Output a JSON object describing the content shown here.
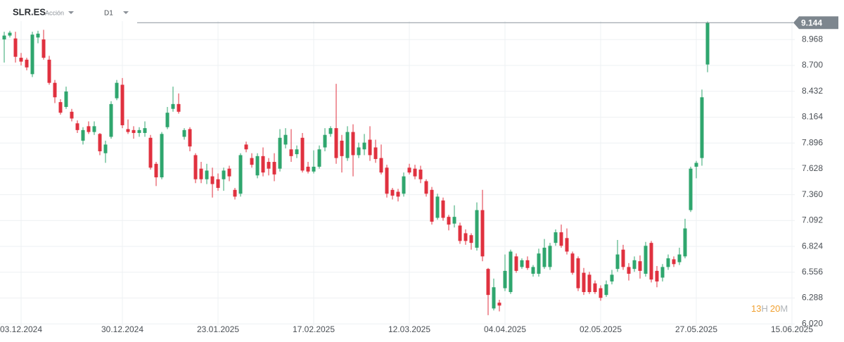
{
  "chart_data": {
    "type": "candlestick",
    "symbol": "SLR.ES",
    "asset_type": "Acción",
    "timeframe": "D1",
    "last_price": 9.144,
    "countdown": {
      "hours": "13",
      "hours_unit": "H",
      "minutes": "20",
      "minutes_unit": "M"
    },
    "up_color": "#2fa66e",
    "down_color": "#e0313f",
    "grid": true,
    "ylim": [
      6.0,
      9.16
    ],
    "yticks": [
      {
        "value": 6.02,
        "label": "6.020"
      },
      6.288,
      6.556,
      6.824,
      7.092,
      {
        "value": 7.36,
        "label": "7.360"
      },
      7.628,
      7.896,
      8.164,
      8.432,
      {
        "value": 8.7,
        "label": "8.700"
      },
      8.968
    ],
    "xlim": [
      -0.75,
      140.5
    ],
    "xticks": [
      {
        "value": 3,
        "label": "03.12.2024"
      },
      {
        "value": 21,
        "label": "30.12.2024"
      },
      {
        "value": 38,
        "label": "23.01.2025"
      },
      {
        "value": 55,
        "label": "17.02.2025"
      },
      {
        "value": 72,
        "label": "12.03.2025"
      },
      {
        "value": 89,
        "label": "04.04.2025"
      },
      {
        "value": 106,
        "label": "02.05.2025"
      },
      {
        "value": 123,
        "label": "27.05.2025"
      },
      {
        "value": 140,
        "label": "15.06.2025"
      }
    ],
    "open": [
      8.97,
      9.01,
      8.98,
      8.78,
      8.76,
      8.61,
      8.99,
      8.97,
      8.76,
      8.52,
      8.32,
      8.27,
      8.22,
      8.1,
      7.92,
      8.07,
      8.01,
      7.99,
      7.79,
      7.96,
      8.36,
      8.5,
      8.04,
      8.03,
      8.0,
      8.0,
      7.95,
      7.68,
      7.54,
      8.06,
      8.25,
      8.3,
      7.96,
      8.04,
      7.77,
      7.63,
      7.52,
      7.55,
      7.52,
      7.52,
      7.63,
      7.41,
      7.37,
      7.88,
      7.74,
      7.56,
      7.76,
      7.7,
      7.7,
      7.63,
      7.88,
      7.83,
      7.78,
      7.95,
      7.65,
      7.6,
      7.65,
      7.85,
      7.99,
      8.05,
      7.92,
      7.74,
      8.01,
      7.77,
      7.83,
      7.93,
      7.85,
      7.74,
      7.64,
      7.41,
      7.39,
      7.37,
      7.64,
      7.63,
      7.62,
      7.5,
      7.41,
      7.12,
      7.3,
      7.13,
      7.06,
      7.04,
      6.96,
      6.94,
      6.81,
      7.2,
      6.59,
      6.18,
      6.24,
      6.39,
      6.35,
      6.72,
      6.61,
      6.68,
      6.54,
      6.54,
      6.61,
      6.61,
      6.86,
      6.97,
      6.91,
      6.75,
      6.7,
      6.55,
      6.53,
      6.44,
      6.39,
      6.32,
      6.46,
      6.59,
      6.79,
      6.61,
      6.59,
      6.67,
      6.54,
      6.86,
      6.57,
      6.5,
      6.61,
      6.69,
      6.66,
      6.72,
      7.2,
      7.65,
      7.74,
      8.71
    ],
    "high": [
      9.05,
      9.06,
      9.05,
      8.83,
      8.78,
      9.05,
      9.06,
      9.07,
      8.8,
      8.55,
      8.35,
      8.48,
      8.25,
      8.13,
      8.06,
      8.12,
      8.12,
      8.0,
      7.92,
      8.33,
      8.55,
      8.57,
      8.14,
      8.07,
      8.06,
      8.12,
      7.98,
      7.7,
      8.01,
      8.27,
      8.48,
      8.41,
      8.05,
      8.06,
      7.79,
      7.7,
      7.68,
      7.64,
      7.58,
      7.64,
      7.66,
      7.43,
      7.79,
      7.91,
      7.79,
      7.79,
      7.85,
      7.74,
      7.79,
      8.04,
      8.05,
      8.04,
      7.87,
      8.0,
      7.7,
      7.82,
      7.87,
      8.05,
      8.07,
      8.51,
      7.98,
      8.07,
      8.09,
      7.9,
      7.99,
      8.07,
      7.93,
      7.88,
      7.67,
      7.43,
      7.42,
      7.59,
      7.68,
      7.67,
      7.66,
      7.52,
      7.44,
      7.37,
      7.33,
      7.15,
      7.25,
      7.07,
      7.0,
      6.96,
      7.28,
      7.41,
      6.6,
      6.49,
      6.27,
      6.74,
      6.79,
      6.75,
      6.7,
      6.72,
      6.63,
      6.8,
      6.9,
      6.86,
      7.0,
      7.05,
      7.01,
      6.77,
      6.72,
      6.6,
      6.56,
      6.47,
      6.42,
      6.47,
      6.58,
      6.89,
      6.84,
      6.65,
      6.72,
      6.73,
      6.87,
      6.88,
      6.62,
      6.64,
      6.74,
      6.72,
      6.81,
      7.11,
      7.65,
      7.71,
      8.45,
      9.155
    ],
    "low": [
      8.73,
      8.99,
      8.73,
      8.7,
      8.65,
      8.58,
      8.93,
      8.76,
      8.5,
      8.31,
      8.19,
      8.25,
      8.12,
      8.0,
      7.88,
      7.99,
      7.98,
      7.77,
      7.69,
      7.94,
      8.34,
      8.05,
      7.99,
      7.94,
      7.96,
      7.96,
      7.62,
      7.45,
      7.52,
      8.04,
      8.22,
      8.2,
      7.93,
      7.81,
      7.48,
      7.48,
      7.47,
      7.33,
      7.4,
      7.4,
      7.5,
      7.31,
      7.34,
      7.8,
      7.64,
      7.53,
      7.55,
      7.56,
      7.5,
      7.6,
      7.84,
      7.7,
      7.74,
      7.59,
      7.58,
      7.58,
      7.63,
      7.81,
      7.96,
      7.68,
      7.59,
      7.71,
      7.55,
      7.74,
      7.77,
      7.71,
      7.69,
      7.57,
      7.33,
      7.31,
      7.29,
      7.34,
      7.57,
      7.52,
      7.48,
      7.34,
      7.05,
      7.1,
      7.09,
      6.99,
      7.02,
      6.85,
      6.84,
      6.79,
      6.78,
      6.67,
      6.11,
      6.16,
      6.15,
      6.36,
      6.33,
      6.55,
      6.59,
      6.58,
      6.51,
      6.51,
      6.59,
      6.58,
      6.83,
      6.81,
      6.74,
      6.53,
      6.36,
      6.32,
      6.33,
      6.33,
      6.26,
      6.3,
      6.43,
      6.56,
      6.58,
      6.47,
      6.56,
      6.49,
      6.51,
      6.45,
      6.4,
      6.46,
      6.58,
      6.61,
      6.63,
      6.7,
      7.18,
      7.53,
      7.66,
      8.63
    ],
    "close": [
      9.01,
      9.04,
      8.79,
      8.74,
      8.68,
      9.02,
      9.03,
      8.78,
      8.52,
      8.37,
      8.21,
      8.43,
      8.15,
      8.03,
      8.03,
      8.01,
      8.07,
      7.81,
      7.88,
      8.3,
      8.52,
      8.08,
      8.01,
      8.0,
      8.03,
      8.05,
      7.64,
      7.54,
      7.99,
      8.21,
      8.3,
      8.22,
      8.03,
      7.86,
      7.52,
      7.52,
      7.61,
      7.47,
      7.43,
      7.61,
      7.55,
      7.34,
      7.77,
      7.83,
      7.67,
      7.76,
      7.59,
      7.63,
      7.57,
      7.95,
      7.98,
      7.76,
      7.83,
      7.61,
      7.6,
      7.65,
      7.83,
      7.98,
      8.05,
      7.74,
      7.76,
      8.01,
      7.77,
      7.85,
      7.9,
      7.77,
      7.73,
      7.59,
      7.37,
      7.35,
      7.34,
      7.55,
      7.59,
      7.55,
      7.52,
      7.37,
      7.08,
      7.34,
      7.12,
      7.05,
      7.13,
      6.88,
      6.88,
      6.86,
      7.2,
      6.72,
      6.32,
      6.4,
      6.21,
      6.57,
      6.77,
      6.57,
      6.68,
      6.6,
      6.61,
      6.75,
      6.81,
      6.83,
      6.97,
      6.83,
      6.77,
      6.55,
      6.39,
      6.35,
      6.35,
      6.35,
      6.29,
      6.43,
      6.53,
      6.74,
      6.61,
      6.54,
      6.68,
      6.57,
      6.83,
      6.48,
      6.46,
      6.61,
      6.7,
      6.64,
      6.74,
      7.01,
      7.63,
      7.69,
      8.37,
      9.144
    ]
  }
}
